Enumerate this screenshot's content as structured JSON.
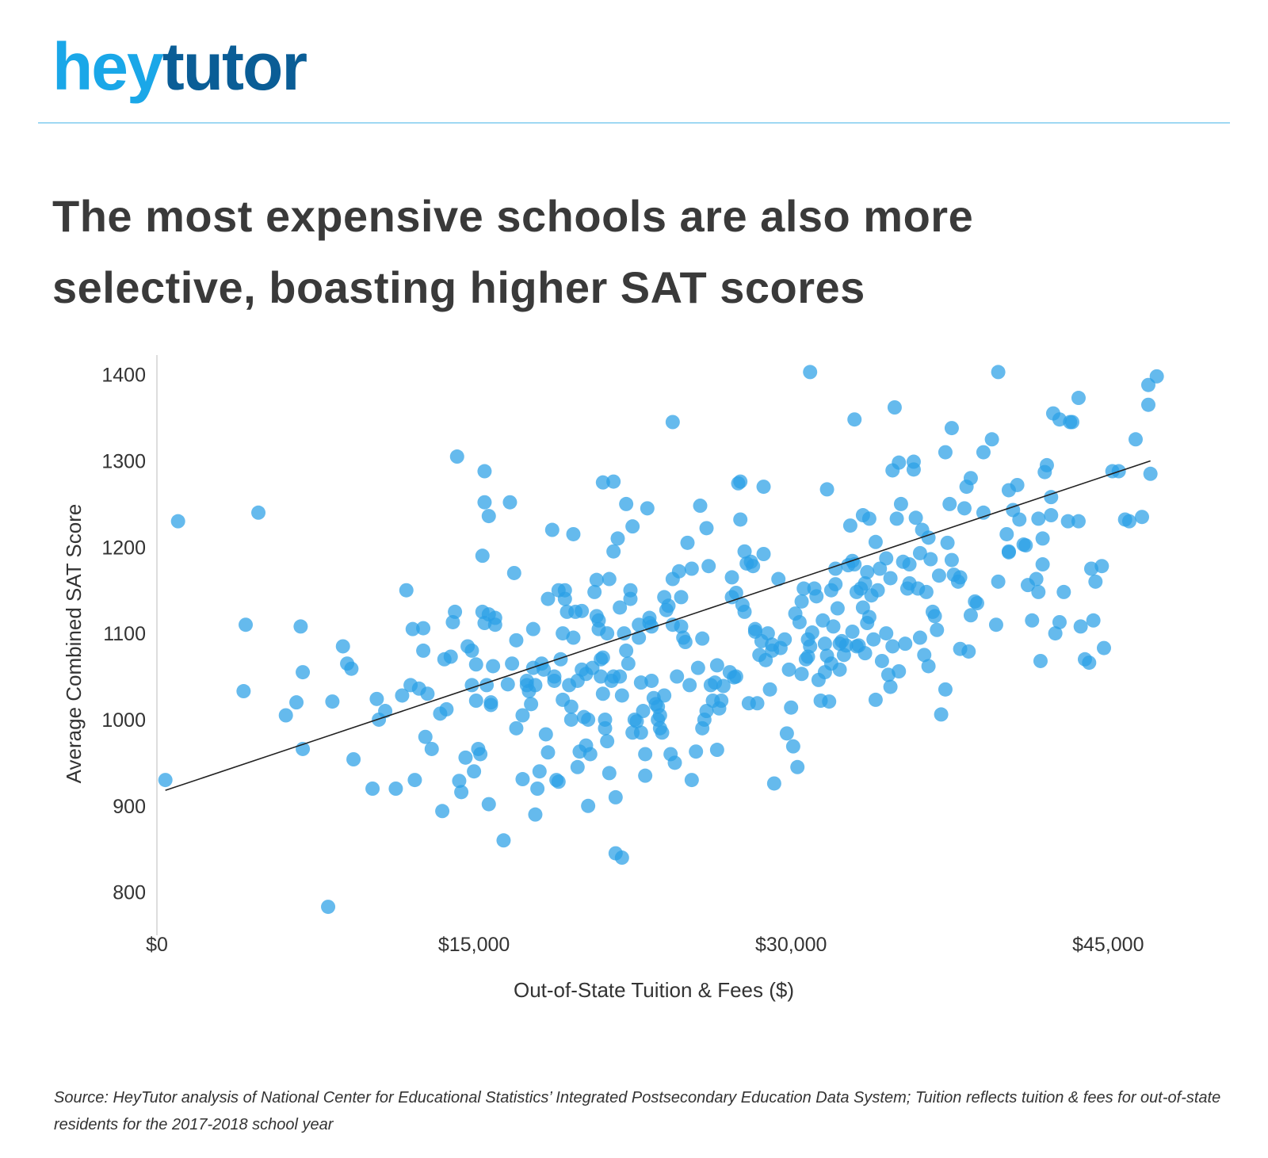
{
  "brand": {
    "logo_part1": "hey",
    "logo_part2": "tutor",
    "accent": "#1aa7e8",
    "accent_dark": "#0a5d96"
  },
  "header": {
    "title": "The most expensive schools are also more selective, boasting higher SAT scores"
  },
  "footer": {
    "source": "Source: HeyTutor analysis of National Center for Educational Statistics’ Integrated Postsecondary Education Data System; Tuition reflects tuition & fees for out-of-state residents for the 2017-2018 school year"
  },
  "chart_data": {
    "type": "scatter",
    "title": "",
    "xlabel": "Out-of-State Tuition & Fees ($)",
    "ylabel": "Average Combined SAT Score",
    "xlim": [
      0,
      47500
    ],
    "ylim": [
      750,
      1430
    ],
    "x_ticks": [
      0,
      15000,
      30000,
      45000
    ],
    "x_tick_labels": [
      "$0",
      "$15,000",
      "$30,000",
      "$45,000"
    ],
    "y_ticks": [
      800,
      900,
      1000,
      1100,
      1200,
      1300,
      1400
    ],
    "y_tick_labels": [
      "800",
      "900",
      "1000",
      "1100",
      "1200",
      "1300",
      "1400"
    ],
    "grid": false,
    "legend": "none",
    "point_color": "#2aa0e6",
    "trendline": {
      "color": "#222222",
      "points": [
        [
          400,
          918
        ],
        [
          47000,
          1300
        ]
      ]
    },
    "points": [
      [
        400,
        930
      ],
      [
        1000,
        1230
      ],
      [
        4200,
        1110
      ],
      [
        4100,
        1033
      ],
      [
        4800,
        1240
      ],
      [
        6100,
        1005
      ],
      [
        6600,
        1020
      ],
      [
        6800,
        1108
      ],
      [
        6900,
        1055
      ],
      [
        6900,
        966
      ],
      [
        8100,
        783
      ],
      [
        8300,
        1021
      ],
      [
        8800,
        1085
      ],
      [
        9000,
        1065
      ],
      [
        9200,
        1059
      ],
      [
        9300,
        954
      ],
      [
        10200,
        920
      ],
      [
        10400,
        1024
      ],
      [
        10500,
        1000
      ],
      [
        10800,
        1010
      ],
      [
        11300,
        920
      ],
      [
        11600,
        1028
      ],
      [
        11800,
        1150
      ],
      [
        12000,
        1040
      ],
      [
        12100,
        1105
      ],
      [
        12200,
        930
      ],
      [
        12400,
        1036
      ],
      [
        12600,
        1106
      ],
      [
        12600,
        1080
      ],
      [
        12700,
        980
      ],
      [
        12800,
        1030
      ],
      [
        13000,
        966
      ],
      [
        13400,
        1007
      ],
      [
        13500,
        894
      ],
      [
        13600,
        1070
      ],
      [
        13700,
        1012
      ],
      [
        13900,
        1073
      ],
      [
        14000,
        1113
      ],
      [
        14100,
        1125
      ],
      [
        14200,
        1305
      ],
      [
        14300,
        929
      ],
      [
        14400,
        916
      ],
      [
        14600,
        956
      ],
      [
        14700,
        1085
      ],
      [
        14900,
        1080
      ],
      [
        14900,
        1040
      ],
      [
        15000,
        940
      ],
      [
        15100,
        1064
      ],
      [
        15100,
        1022
      ],
      [
        15200,
        966
      ],
      [
        15300,
        960
      ],
      [
        15400,
        1125
      ],
      [
        15400,
        1190
      ],
      [
        15500,
        1112
      ],
      [
        15500,
        1252
      ],
      [
        15500,
        1288
      ],
      [
        15600,
        1040
      ],
      [
        15700,
        902
      ],
      [
        15700,
        1122
      ],
      [
        15700,
        1236
      ],
      [
        15800,
        1017
      ],
      [
        15800,
        1020
      ],
      [
        15900,
        1062
      ],
      [
        16000,
        1118
      ],
      [
        16000,
        1110
      ],
      [
        16400,
        860
      ],
      [
        16600,
        1041
      ],
      [
        16700,
        1252
      ],
      [
        16800,
        1065
      ],
      [
        16900,
        1170
      ],
      [
        17000,
        1092
      ],
      [
        17000,
        990
      ],
      [
        17300,
        931
      ],
      [
        17300,
        1005
      ],
      [
        17500,
        1045
      ],
      [
        17500,
        1040
      ],
      [
        17600,
        1033
      ],
      [
        17700,
        1018
      ],
      [
        17800,
        1105
      ],
      [
        17800,
        1060
      ],
      [
        17900,
        1040
      ],
      [
        17900,
        890
      ],
      [
        18000,
        920
      ],
      [
        18100,
        940
      ],
      [
        18200,
        1065
      ],
      [
        18300,
        1058
      ],
      [
        18400,
        983
      ],
      [
        18500,
        962
      ],
      [
        18500,
        1140
      ],
      [
        18700,
        1220
      ],
      [
        18800,
        1050
      ],
      [
        18800,
        1045
      ],
      [
        18900,
        930
      ],
      [
        19000,
        1150
      ],
      [
        19000,
        928
      ],
      [
        19100,
        1070
      ],
      [
        19200,
        1100
      ],
      [
        19200,
        1023
      ],
      [
        19300,
        1150
      ],
      [
        19300,
        1140
      ],
      [
        19400,
        1125
      ],
      [
        19500,
        1040
      ],
      [
        19600,
        1015
      ],
      [
        19600,
        1000
      ],
      [
        19700,
        1215
      ],
      [
        19700,
        1095
      ],
      [
        19800,
        1125
      ],
      [
        19900,
        1045
      ],
      [
        19900,
        945
      ],
      [
        20000,
        963
      ],
      [
        20100,
        1126
      ],
      [
        20100,
        1058
      ],
      [
        20200,
        1003
      ],
      [
        20300,
        970
      ],
      [
        20300,
        1053
      ],
      [
        20400,
        900
      ],
      [
        20400,
        1000
      ],
      [
        20500,
        960
      ],
      [
        20600,
        1060
      ],
      [
        20700,
        1148
      ],
      [
        20800,
        1162
      ],
      [
        20800,
        1120
      ],
      [
        20900,
        1115
      ],
      [
        20900,
        1105
      ],
      [
        21000,
        1070
      ],
      [
        21000,
        1050
      ],
      [
        21100,
        1030
      ],
      [
        21100,
        1072
      ],
      [
        21200,
        990
      ],
      [
        21200,
        1000
      ],
      [
        21300,
        975
      ],
      [
        21300,
        1100
      ],
      [
        21400,
        938
      ],
      [
        21400,
        1163
      ],
      [
        21500,
        1045
      ],
      [
        21600,
        1195
      ],
      [
        21600,
        1050
      ],
      [
        21700,
        910
      ],
      [
        21700,
        845
      ],
      [
        21800,
        1210
      ],
      [
        21900,
        1130
      ],
      [
        21900,
        1050
      ],
      [
        22000,
        1028
      ],
      [
        22000,
        840
      ],
      [
        22100,
        1100
      ],
      [
        22200,
        1080
      ],
      [
        22300,
        1065
      ],
      [
        22400,
        1150
      ],
      [
        22400,
        1140
      ],
      [
        22500,
        985
      ],
      [
        22600,
        1000
      ],
      [
        22700,
        998
      ],
      [
        22800,
        1110
      ],
      [
        22800,
        1095
      ],
      [
        22900,
        1043
      ],
      [
        22900,
        985
      ],
      [
        23000,
        1010
      ],
      [
        23100,
        960
      ],
      [
        23100,
        935
      ],
      [
        23200,
        1245
      ],
      [
        23300,
        1118
      ],
      [
        23300,
        1112
      ],
      [
        23400,
        1108
      ],
      [
        23400,
        1045
      ],
      [
        23500,
        1025
      ],
      [
        23600,
        1018
      ],
      [
        23700,
        1000
      ],
      [
        23700,
        1015
      ],
      [
        23800,
        1005
      ],
      [
        23800,
        990
      ],
      [
        23900,
        985
      ],
      [
        24000,
        1028
      ],
      [
        24000,
        1142
      ],
      [
        24100,
        1127
      ],
      [
        24200,
        1132
      ],
      [
        24300,
        960
      ],
      [
        24400,
        1163
      ],
      [
        24400,
        1110
      ],
      [
        24500,
        950
      ],
      [
        24600,
        1050
      ],
      [
        24700,
        1172
      ],
      [
        24800,
        1142
      ],
      [
        24800,
        1108
      ],
      [
        24900,
        1095
      ],
      [
        25000,
        1090
      ],
      [
        25100,
        1205
      ],
      [
        25200,
        1040
      ],
      [
        25300,
        930
      ],
      [
        25300,
        1175
      ],
      [
        25500,
        963
      ],
      [
        25600,
        1060
      ],
      [
        25700,
        1248
      ],
      [
        25800,
        1094
      ],
      [
        25800,
        990
      ],
      [
        25900,
        1000
      ],
      [
        26000,
        1010
      ],
      [
        26100,
        1178
      ],
      [
        26200,
        1040
      ],
      [
        26300,
        1022
      ],
      [
        26400,
        1043
      ],
      [
        26500,
        1063
      ],
      [
        26500,
        965
      ],
      [
        26600,
        1013
      ],
      [
        26700,
        1022
      ],
      [
        26800,
        1039
      ],
      [
        27100,
        1055
      ],
      [
        27200,
        1165
      ],
      [
        27200,
        1142
      ],
      [
        27300,
        1049
      ],
      [
        27400,
        1050
      ],
      [
        27400,
        1147
      ],
      [
        27500,
        1274
      ],
      [
        27600,
        1276
      ],
      [
        27600,
        1232
      ],
      [
        27700,
        1133
      ],
      [
        27800,
        1125
      ],
      [
        27800,
        1195
      ],
      [
        27900,
        1181
      ],
      [
        28000,
        1019
      ],
      [
        28100,
        1183
      ],
      [
        28200,
        1178
      ],
      [
        28300,
        1102
      ],
      [
        28300,
        1105
      ],
      [
        28400,
        1019
      ],
      [
        28500,
        1075
      ],
      [
        28600,
        1091
      ],
      [
        28700,
        1192
      ],
      [
        28700,
        1270
      ],
      [
        28800,
        1069
      ],
      [
        28900,
        1100
      ],
      [
        29000,
        1035
      ],
      [
        29100,
        1087
      ],
      [
        29100,
        1080
      ],
      [
        29200,
        926
      ],
      [
        29400,
        1163
      ],
      [
        29500,
        1083
      ],
      [
        29700,
        1093
      ],
      [
        29800,
        984
      ],
      [
        29900,
        1058
      ],
      [
        30000,
        1014
      ],
      [
        30100,
        969
      ],
      [
        30200,
        1123
      ],
      [
        30300,
        945
      ],
      [
        30400,
        1113
      ],
      [
        30500,
        1137
      ],
      [
        30500,
        1053
      ],
      [
        30600,
        1152
      ],
      [
        30700,
        1070
      ],
      [
        30800,
        1093
      ],
      [
        30800,
        1073
      ],
      [
        30900,
        1085
      ],
      [
        31000,
        1101
      ],
      [
        31100,
        1152
      ],
      [
        31200,
        1143
      ],
      [
        31300,
        1046
      ],
      [
        31400,
        1022
      ],
      [
        31500,
        1115
      ],
      [
        31600,
        1088
      ],
      [
        31600,
        1055
      ],
      [
        31700,
        1074
      ],
      [
        31800,
        1021
      ],
      [
        31900,
        1150
      ],
      [
        31900,
        1065
      ],
      [
        32000,
        1108
      ],
      [
        32100,
        1157
      ],
      [
        32100,
        1175
      ],
      [
        32200,
        1129
      ],
      [
        32300,
        1058
      ],
      [
        32300,
        1088
      ],
      [
        32400,
        1091
      ],
      [
        32500,
        1075
      ],
      [
        32600,
        1086
      ],
      [
        32700,
        1179
      ],
      [
        32800,
        1225
      ],
      [
        32900,
        1102
      ],
      [
        32900,
        1184
      ],
      [
        33000,
        1180
      ],
      [
        33000,
        1348
      ],
      [
        33100,
        1085
      ],
      [
        33100,
        1148
      ],
      [
        33200,
        1086
      ],
      [
        33300,
        1152
      ],
      [
        33400,
        1130
      ],
      [
        33500,
        1158
      ],
      [
        33500,
        1077
      ],
      [
        33600,
        1112
      ],
      [
        33600,
        1171
      ],
      [
        33700,
        1233
      ],
      [
        33700,
        1119
      ],
      [
        33800,
        1144
      ],
      [
        33900,
        1093
      ],
      [
        34000,
        1023
      ],
      [
        34000,
        1206
      ],
      [
        34100,
        1150
      ],
      [
        34200,
        1175
      ],
      [
        34300,
        1068
      ],
      [
        34500,
        1187
      ],
      [
        34500,
        1100
      ],
      [
        34600,
        1052
      ],
      [
        34700,
        1038
      ],
      [
        34700,
        1164
      ],
      [
        34800,
        1085
      ],
      [
        34900,
        1362
      ],
      [
        35000,
        1233
      ],
      [
        35100,
        1298
      ],
      [
        35100,
        1056
      ],
      [
        35200,
        1250
      ],
      [
        35300,
        1183
      ],
      [
        35400,
        1088
      ],
      [
        35500,
        1152
      ],
      [
        35600,
        1180
      ],
      [
        35600,
        1158
      ],
      [
        35800,
        1299
      ],
      [
        35900,
        1234
      ],
      [
        36000,
        1152
      ],
      [
        36100,
        1095
      ],
      [
        36100,
        1193
      ],
      [
        36200,
        1220
      ],
      [
        36300,
        1075
      ],
      [
        36400,
        1148
      ],
      [
        36500,
        1211
      ],
      [
        36600,
        1186
      ],
      [
        36700,
        1125
      ],
      [
        36800,
        1120
      ],
      [
        36900,
        1104
      ],
      [
        37000,
        1167
      ],
      [
        37100,
        1006
      ],
      [
        37300,
        1035
      ],
      [
        37300,
        1310
      ],
      [
        37400,
        1205
      ],
      [
        37500,
        1250
      ],
      [
        37600,
        1185
      ],
      [
        37600,
        1338
      ],
      [
        37700,
        1168
      ],
      [
        37900,
        1160
      ],
      [
        38000,
        1165
      ],
      [
        38000,
        1082
      ],
      [
        38200,
        1245
      ],
      [
        38300,
        1270
      ],
      [
        38400,
        1079
      ],
      [
        38500,
        1121
      ],
      [
        38500,
        1280
      ],
      [
        38700,
        1137
      ],
      [
        38800,
        1135
      ],
      [
        39100,
        1310
      ],
      [
        39100,
        1240
      ],
      [
        39500,
        1325
      ],
      [
        39700,
        1110
      ],
      [
        39800,
        1160
      ],
      [
        39800,
        1403
      ],
      [
        40200,
        1215
      ],
      [
        40300,
        1194
      ],
      [
        40300,
        1266
      ],
      [
        40500,
        1243
      ],
      [
        40700,
        1272
      ],
      [
        40800,
        1232
      ],
      [
        41000,
        1203
      ],
      [
        41100,
        1202
      ],
      [
        41200,
        1156
      ],
      [
        41400,
        1115
      ],
      [
        41600,
        1163
      ],
      [
        41700,
        1148
      ],
      [
        41900,
        1210
      ],
      [
        42000,
        1287
      ],
      [
        42300,
        1258
      ],
      [
        42300,
        1237
      ],
      [
        42500,
        1100
      ],
      [
        42700,
        1113
      ],
      [
        42700,
        1348
      ],
      [
        42900,
        1148
      ],
      [
        43100,
        1230
      ],
      [
        43200,
        1345
      ],
      [
        43300,
        1345
      ],
      [
        43600,
        1230
      ],
      [
        43700,
        1108
      ],
      [
        43900,
        1070
      ],
      [
        44100,
        1066
      ],
      [
        44300,
        1115
      ],
      [
        44400,
        1160
      ],
      [
        44700,
        1178
      ],
      [
        44800,
        1083
      ],
      [
        45200,
        1288
      ],
      [
        45500,
        1288
      ],
      [
        45800,
        1232
      ],
      [
        46000,
        1230
      ],
      [
        46300,
        1325
      ],
      [
        46600,
        1235
      ],
      [
        46900,
        1365
      ],
      [
        47000,
        1285
      ],
      [
        34800,
        1289
      ],
      [
        35800,
        1290
      ],
      [
        36500,
        1062
      ],
      [
        33400,
        1237
      ],
      [
        31700,
        1267
      ],
      [
        40300,
        1195
      ],
      [
        41700,
        1233
      ],
      [
        41900,
        1180
      ],
      [
        42100,
        1295
      ],
      [
        42400,
        1355
      ],
      [
        43600,
        1373
      ],
      [
        44200,
        1175
      ],
      [
        46900,
        1388
      ],
      [
        47300,
        1398
      ],
      [
        30900,
        1403
      ],
      [
        41800,
        1068
      ],
      [
        26000,
        1222
      ],
      [
        22200,
        1250
      ],
      [
        21100,
        1275
      ],
      [
        21600,
        1276
      ],
      [
        22500,
        1224
      ],
      [
        24400,
        1345
      ]
    ]
  }
}
